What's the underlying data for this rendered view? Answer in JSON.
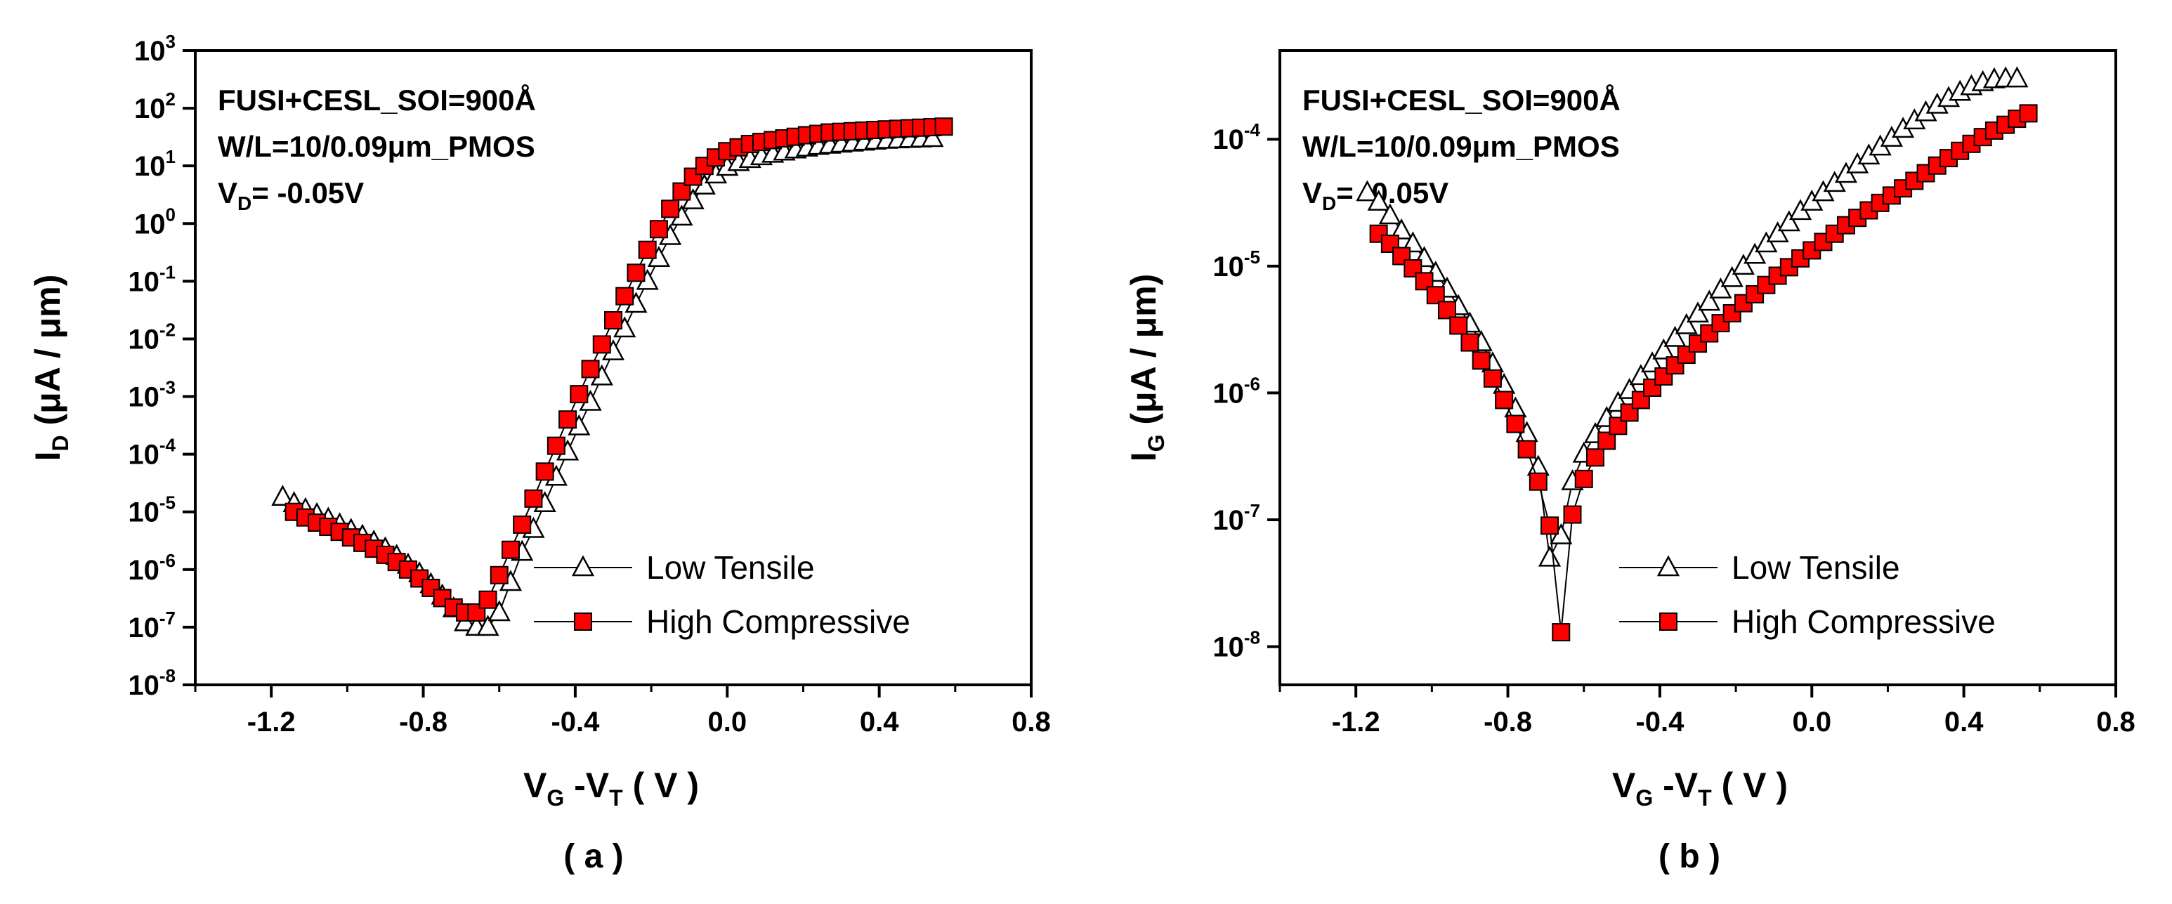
{
  "figure": {
    "panel_labels": [
      "( a )",
      "( b )"
    ]
  },
  "chart_data": [
    {
      "type": "scatter",
      "panel": "( a )",
      "annotation": [
        {
          "text": "FUSI+CESL_SOI=900Å"
        },
        {
          "text": "W/L=10/0.09μm_PMOS"
        },
        {
          "text": "V",
          "sub": "D",
          "rest": "= -0.05V"
        }
      ],
      "xlabel": {
        "parts": [
          {
            "t": "V"
          },
          {
            "t": "G",
            "sub": true
          },
          {
            "t": " -V"
          },
          {
            "t": "T",
            "sub": true
          },
          {
            "t": " ( V )"
          }
        ]
      },
      "ylabel": {
        "parts": [
          {
            "t": "I"
          },
          {
            "t": "D",
            "sub": true
          },
          {
            "t": " (μA / μm)"
          }
        ]
      },
      "xlim": [
        -1.4,
        0.8
      ],
      "x_ticks": [
        "-1.2",
        "-0.8",
        "-0.4",
        "0.0",
        "0.4",
        "0.8"
      ],
      "x_tick_values": [
        -1.2,
        -0.8,
        -0.4,
        0.0,
        0.4,
        0.8
      ],
      "y_scale": "log",
      "ylim": [
        1e-08,
        1000
      ],
      "y_tick_exponents": [
        -8,
        -7,
        -6,
        -5,
        -4,
        -3,
        -2,
        -1,
        0,
        1,
        2,
        3
      ],
      "legend_position": "bottom-right",
      "series": [
        {
          "name": "Low Tensile",
          "marker": "open-triangle",
          "color": "#000000",
          "x": [
            -1.17,
            -1.14,
            -1.11,
            -1.08,
            -1.05,
            -1.02,
            -0.99,
            -0.96,
            -0.93,
            -0.9,
            -0.87,
            -0.84,
            -0.81,
            -0.78,
            -0.75,
            -0.72,
            -0.69,
            -0.66,
            -0.63,
            -0.6,
            -0.57,
            -0.54,
            -0.51,
            -0.48,
            -0.45,
            -0.42,
            -0.39,
            -0.36,
            -0.33,
            -0.3,
            -0.27,
            -0.24,
            -0.21,
            -0.18,
            -0.15,
            -0.12,
            -0.09,
            -0.06,
            -0.03,
            0.0,
            0.03,
            0.06,
            0.09,
            0.12,
            0.15,
            0.18,
            0.21,
            0.24,
            0.27,
            0.3,
            0.33,
            0.36,
            0.39,
            0.42,
            0.45,
            0.48,
            0.51,
            0.54
          ],
          "y": [
            1.8e-05,
            1.4e-05,
            1.1e-05,
            9e-06,
            7.5e-06,
            6e-06,
            4.8e-06,
            3.8e-06,
            3e-06,
            2.3e-06,
            1.7e-06,
            1.2e-06,
            8.5e-07,
            5.5e-07,
            3.5e-07,
            2.1e-07,
            1.2e-07,
            1e-07,
            1e-07,
            1.8e-07,
            6e-07,
            2e-06,
            5e-06,
            1.4e-05,
            4e-05,
            0.00011,
            0.0003,
            0.0008,
            0.0022,
            0.006,
            0.015,
            0.04,
            0.1,
            0.25,
            0.6,
            1.3,
            2.5,
            4.5,
            7,
            9.5,
            11.5,
            13,
            14.5,
            16,
            17.5,
            19,
            20.5,
            22,
            23,
            24,
            25,
            26,
            27,
            28,
            28.5,
            29,
            29.5,
            30
          ]
        },
        {
          "name": "High Compressive",
          "marker": "filled-square",
          "color": "#ff0000",
          "x": [
            -1.14,
            -1.11,
            -1.08,
            -1.05,
            -1.02,
            -0.99,
            -0.96,
            -0.93,
            -0.9,
            -0.87,
            -0.84,
            -0.81,
            -0.78,
            -0.75,
            -0.72,
            -0.69,
            -0.66,
            -0.63,
            -0.6,
            -0.57,
            -0.54,
            -0.51,
            -0.48,
            -0.45,
            -0.42,
            -0.39,
            -0.36,
            -0.33,
            -0.3,
            -0.27,
            -0.24,
            -0.21,
            -0.18,
            -0.15,
            -0.12,
            -0.09,
            -0.06,
            -0.03,
            0.0,
            0.03,
            0.06,
            0.09,
            0.12,
            0.15,
            0.18,
            0.21,
            0.24,
            0.27,
            0.3,
            0.33,
            0.36,
            0.39,
            0.42,
            0.45,
            0.48,
            0.51,
            0.54,
            0.57
          ],
          "y": [
            1e-05,
            8e-06,
            6.5e-06,
            5.5e-06,
            4.5e-06,
            3.6e-06,
            2.9e-06,
            2.3e-06,
            1.8e-06,
            1.35e-06,
            1e-06,
            7e-07,
            4.8e-07,
            3.2e-07,
            2.2e-07,
            1.8e-07,
            1.8e-07,
            3e-07,
            8e-07,
            2.2e-06,
            6e-06,
            1.7e-05,
            5e-05,
            0.00014,
            0.0004,
            0.0011,
            0.003,
            0.008,
            0.021,
            0.055,
            0.14,
            0.35,
            0.8,
            1.8,
            3.6,
            6.5,
            10,
            14,
            18,
            21,
            24,
            26,
            28,
            30,
            32,
            34,
            36,
            38,
            39,
            40,
            41,
            42,
            43,
            44,
            45,
            46,
            47,
            48
          ]
        }
      ]
    },
    {
      "type": "scatter",
      "panel": "( b )",
      "annotation": [
        {
          "text": "FUSI+CESL_SOI=900Å"
        },
        {
          "text": "W/L=10/0.09μm_PMOS"
        },
        {
          "text": "V",
          "sub": "D",
          "rest": "= -0.05V"
        }
      ],
      "xlabel": {
        "parts": [
          {
            "t": "V"
          },
          {
            "t": "G",
            "sub": true
          },
          {
            "t": " -V"
          },
          {
            "t": "T",
            "sub": true
          },
          {
            "t": " ( V )"
          }
        ]
      },
      "ylabel": {
        "parts": [
          {
            "t": "I"
          },
          {
            "t": "G",
            "sub": true
          },
          {
            "t": " (μA / μm)"
          }
        ]
      },
      "xlim": [
        -1.4,
        0.8
      ],
      "x_ticks": [
        "-1.2",
        "-0.8",
        "-0.4",
        "0.0",
        "0.4",
        "0.8"
      ],
      "x_tick_values": [
        -1.2,
        -0.8,
        -0.4,
        0.0,
        0.4,
        0.8
      ],
      "y_scale": "log",
      "ylim": [
        5e-09,
        0.0005
      ],
      "y_tick_exponents": [
        -8,
        -7,
        -6,
        -5,
        -4
      ],
      "legend_position": "bottom-right",
      "series": [
        {
          "name": "Low Tensile",
          "marker": "open-triangle",
          "color": "#000000",
          "x": [
            -1.17,
            -1.14,
            -1.11,
            -1.08,
            -1.05,
            -1.02,
            -0.99,
            -0.96,
            -0.93,
            -0.9,
            -0.87,
            -0.84,
            -0.81,
            -0.78,
            -0.75,
            -0.72,
            -0.69,
            -0.66,
            -0.63,
            -0.6,
            -0.57,
            -0.54,
            -0.51,
            -0.48,
            -0.45,
            -0.42,
            -0.39,
            -0.36,
            -0.33,
            -0.3,
            -0.27,
            -0.24,
            -0.21,
            -0.18,
            -0.15,
            -0.12,
            -0.09,
            -0.06,
            -0.03,
            0.0,
            0.03,
            0.06,
            0.09,
            0.12,
            0.15,
            0.18,
            0.21,
            0.24,
            0.27,
            0.3,
            0.33,
            0.36,
            0.39,
            0.42,
            0.45,
            0.48,
            0.51,
            0.54
          ],
          "y": [
            3.8e-05,
            3.2e-05,
            2.5e-05,
            1.9e-05,
            1.5e-05,
            1.15e-05,
            8.8e-06,
            6.6e-06,
            4.8e-06,
            3.5e-06,
            2.5e-06,
            1.7e-06,
            1.15e-06,
            7.5e-07,
            4.8e-07,
            2.6e-07,
            5e-08,
            7.5e-08,
            2e-07,
            3.3e-07,
            4.7e-07,
            6.3e-07,
            8.3e-07,
            1.05e-06,
            1.35e-06,
            1.7e-06,
            2.15e-06,
            2.7e-06,
            3.4e-06,
            4.2e-06,
            5.2e-06,
            6.5e-06,
            8e-06,
            1e-05,
            1.22e-05,
            1.5e-05,
            1.8e-05,
            2.2e-05,
            2.7e-05,
            3.2e-05,
            3.8e-05,
            4.5e-05,
            5.3e-05,
            6.3e-05,
            7.4e-05,
            8.7e-05,
            0.000102,
            0.00012,
            0.00014,
            0.000162,
            0.000186,
            0.00021,
            0.000235,
            0.00026,
            0.00028,
            0.000295,
            0.0003,
            0.0003
          ]
        },
        {
          "name": "High Compressive",
          "marker": "filled-square",
          "color": "#ff0000",
          "x": [
            -1.14,
            -1.11,
            -1.08,
            -1.05,
            -1.02,
            -0.99,
            -0.96,
            -0.93,
            -0.9,
            -0.87,
            -0.84,
            -0.81,
            -0.78,
            -0.75,
            -0.72,
            -0.69,
            -0.66,
            -0.63,
            -0.6,
            -0.57,
            -0.54,
            -0.51,
            -0.48,
            -0.45,
            -0.42,
            -0.39,
            -0.36,
            -0.33,
            -0.3,
            -0.27,
            -0.24,
            -0.21,
            -0.18,
            -0.15,
            -0.12,
            -0.09,
            -0.06,
            -0.03,
            0.0,
            0.03,
            0.06,
            0.09,
            0.12,
            0.15,
            0.18,
            0.21,
            0.24,
            0.27,
            0.3,
            0.33,
            0.36,
            0.39,
            0.42,
            0.45,
            0.48,
            0.51,
            0.54,
            0.57
          ],
          "y": [
            1.8e-05,
            1.5e-05,
            1.2e-05,
            9.6e-06,
            7.6e-06,
            5.9e-06,
            4.5e-06,
            3.4e-06,
            2.5e-06,
            1.8e-06,
            1.3e-06,
            8.8e-07,
            5.7e-07,
            3.6e-07,
            2e-07,
            9e-08,
            1.3e-08,
            1.1e-07,
            2.1e-07,
            3.1e-07,
            4.2e-07,
            5.5e-07,
            7e-07,
            8.8e-07,
            1.1e-06,
            1.35e-06,
            1.65e-06,
            2e-06,
            2.45e-06,
            2.95e-06,
            3.55e-06,
            4.25e-06,
            5.1e-06,
            6e-06,
            7.1e-06,
            8.4e-06,
            9.8e-06,
            1.15e-05,
            1.33e-05,
            1.55e-05,
            1.8e-05,
            2.1e-05,
            2.4e-05,
            2.75e-05,
            3.15e-05,
            3.6e-05,
            4.1e-05,
            4.7e-05,
            5.4e-05,
            6.2e-05,
            7.1e-05,
            8.1e-05,
            9.2e-05,
            0.000104,
            0.000117,
            0.00013,
            0.000145,
            0.00016
          ]
        }
      ]
    }
  ]
}
